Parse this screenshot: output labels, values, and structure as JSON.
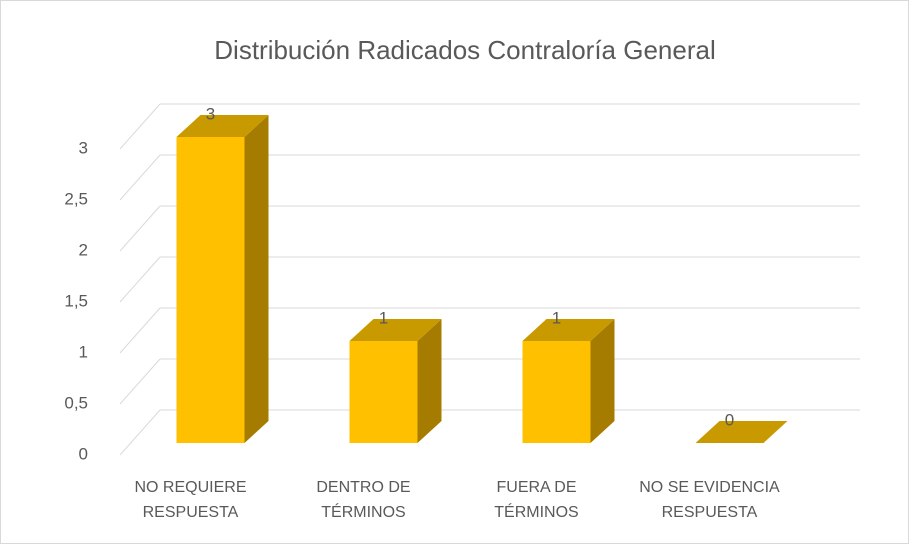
{
  "chart_data": {
    "type": "bar3d",
    "title": "Distribución Radicados Contraloría General",
    "categories": [
      "NO REQUIERE\nRESPUESTA",
      "DENTRO DE\nTÉRMINOS",
      "FUERA DE\nTÉRMINOS",
      "NO SE EVIDENCIA\nRESPUESTA"
    ],
    "values": [
      3,
      1,
      1,
      0
    ],
    "color": "#ffc000",
    "ylim": [
      0,
      3
    ],
    "yticks": [
      0,
      {
        "value": 0.5,
        "label": "0,5"
      },
      1,
      {
        "value": 1.5,
        "label": "1,5"
      },
      2,
      {
        "value": 2.5,
        "label": "2,5"
      },
      3
    ],
    "grid": true
  }
}
